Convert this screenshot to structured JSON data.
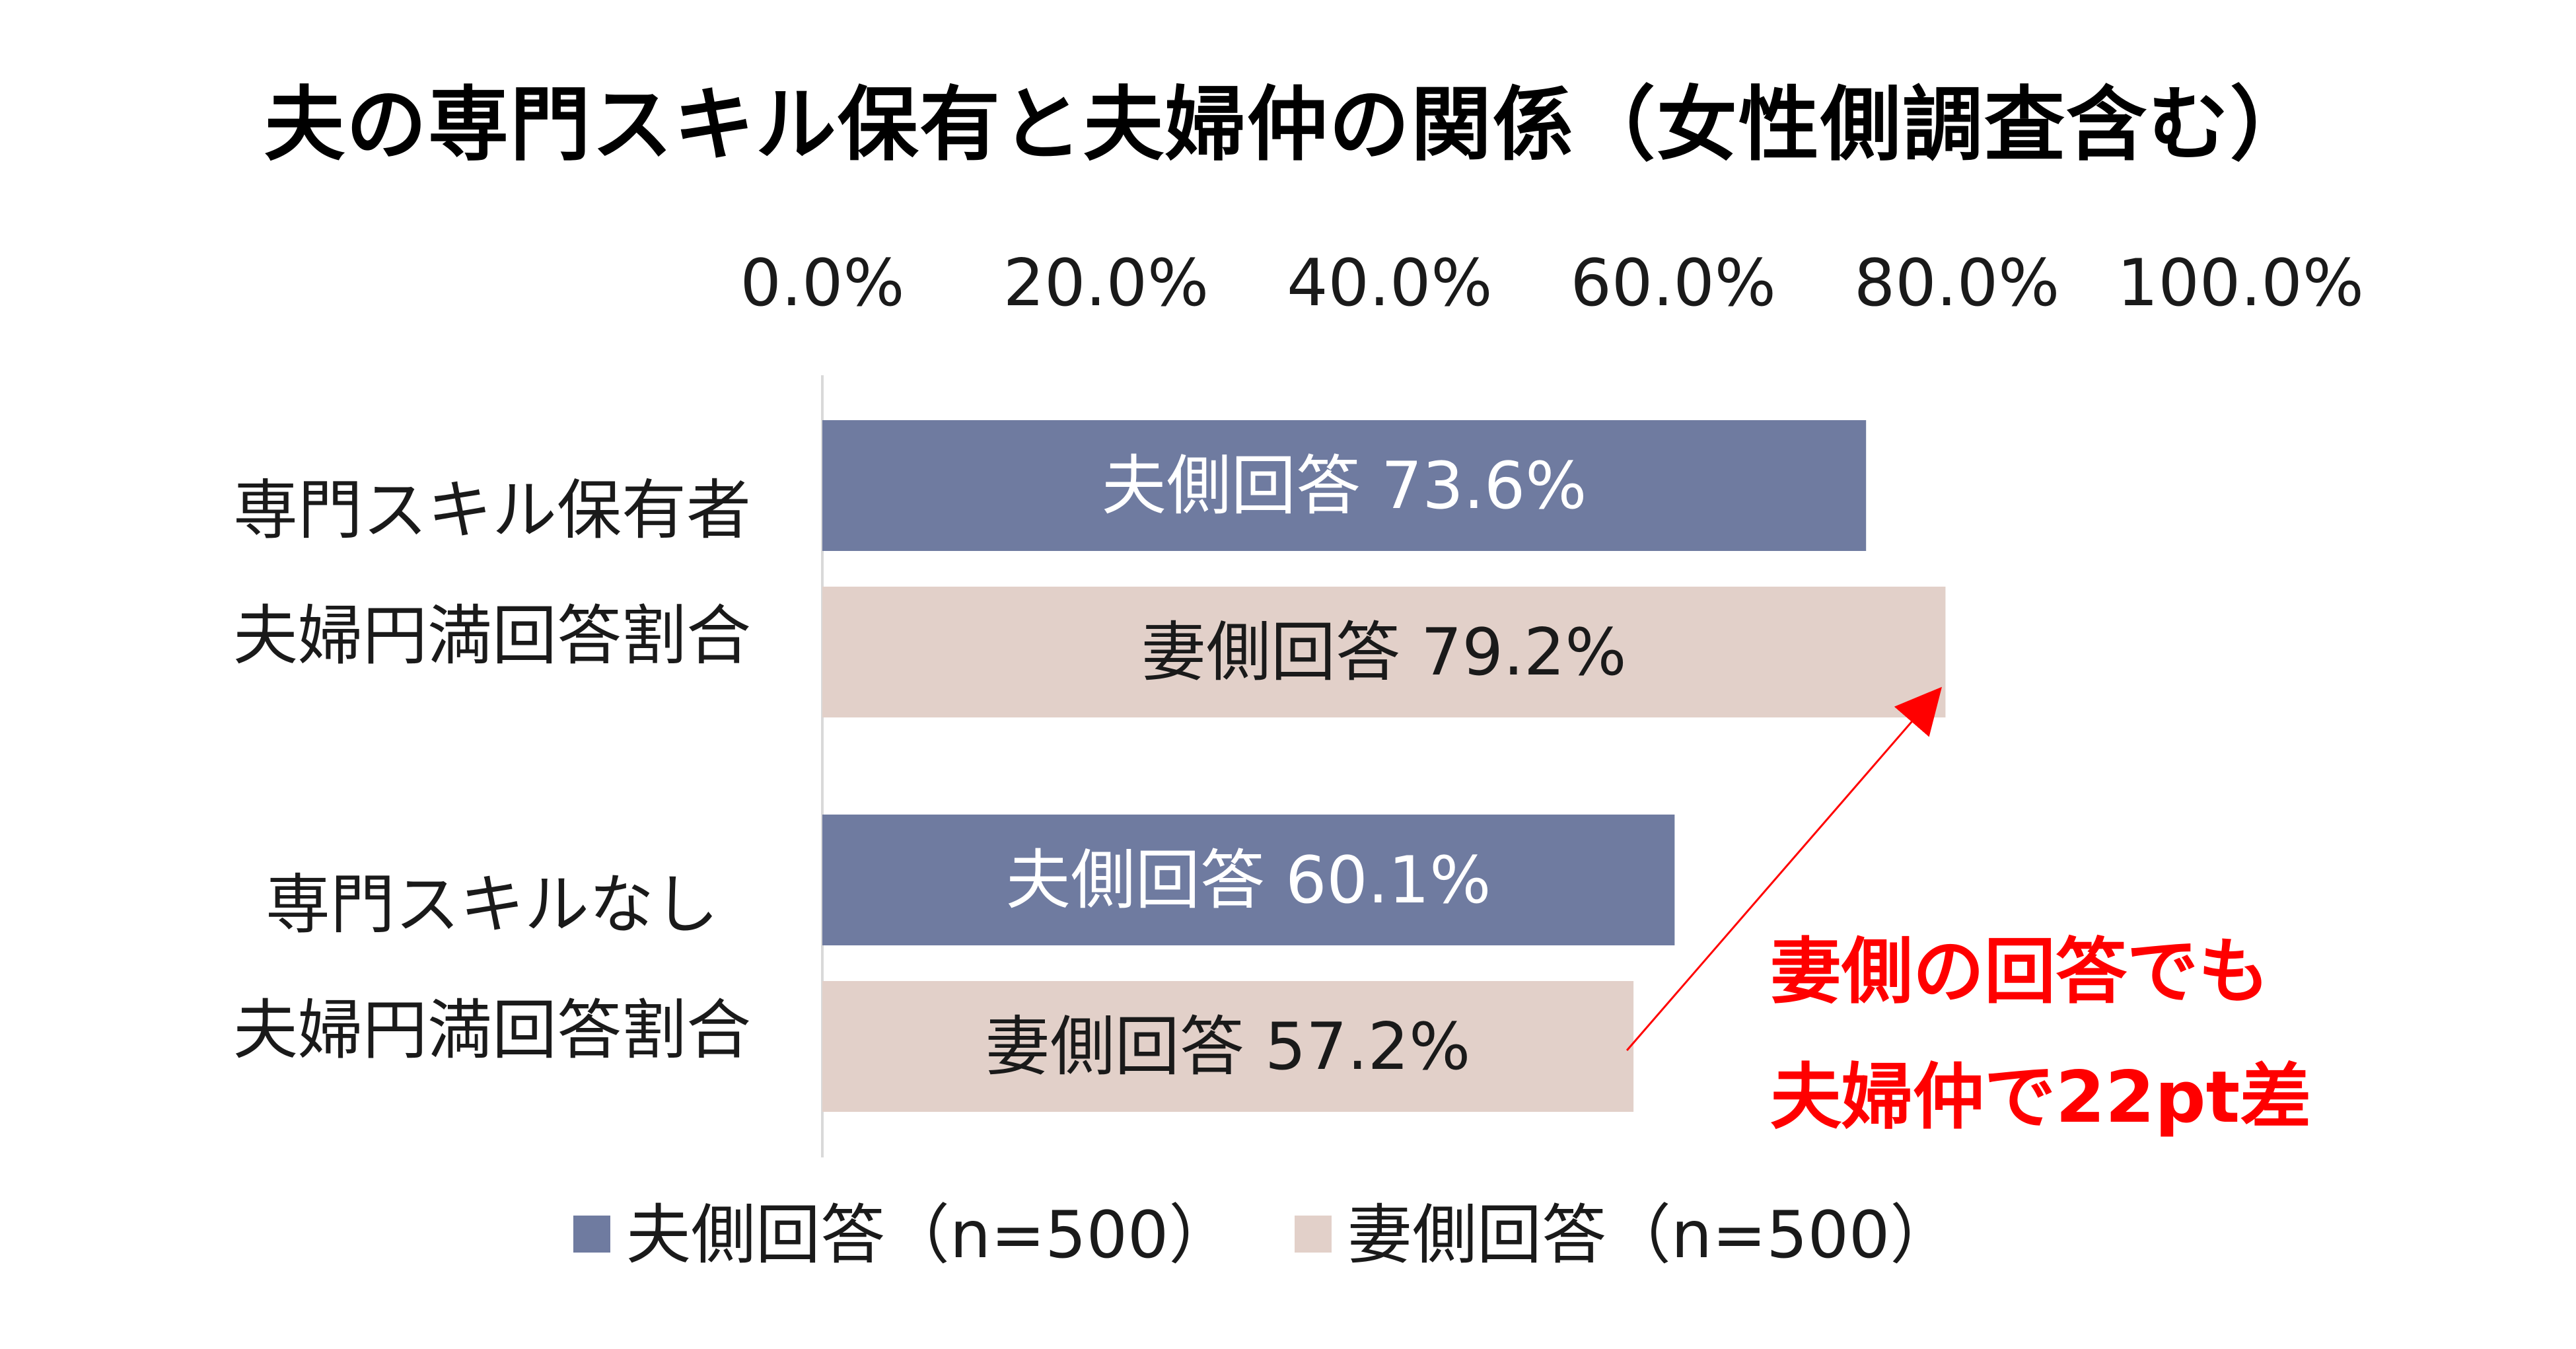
{
  "chart_data": {
    "type": "bar",
    "orientation": "horizontal",
    "title": "夫の専門スキル保有と夫婦仲の関係（女性側調査含む）",
    "x_ticks": [
      "0.0%",
      "20.0%",
      "40.0%",
      "60.0%",
      "80.0%",
      "100.0%"
    ],
    "xlim": [
      0,
      100
    ],
    "x_axis_position": "top",
    "categories": [
      [
        "専門スキル保有者",
        "夫婦円満回答割合"
      ],
      [
        "専門スキルなし",
        "夫婦円満回答割合"
      ]
    ],
    "series": [
      {
        "name": "夫側回答（n=500）",
        "color": "#6f7ba0",
        "label_color": "#ffffff",
        "values": [
          73.6,
          60.1
        ],
        "labels": [
          "夫側回答 73.6%",
          "夫側回答 60.1%"
        ]
      },
      {
        "name": "妻側回答（n=500）",
        "color": "#e2d0c9",
        "label_color": "#1a1a1a",
        "values": [
          79.2,
          57.2
        ],
        "labels": [
          "妻側回答 79.2%",
          "妻側回答 57.2%"
        ]
      }
    ],
    "annotation": {
      "lines": [
        "妻側の回答でも",
        "夫婦仲で22pt差"
      ],
      "color": "#ff0000"
    },
    "grid": false,
    "legend_placement": "bottom"
  }
}
